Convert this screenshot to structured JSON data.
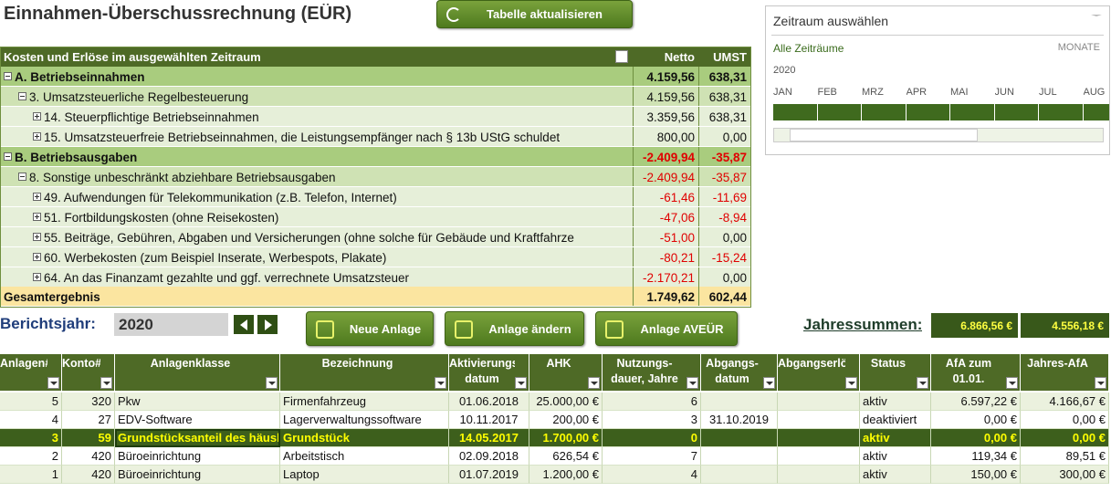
{
  "header": {
    "title": "Einnahmen-Überschussrechnung (EÜR)",
    "refresh_button": "Tabelle aktualisieren"
  },
  "slicer": {
    "title": "Zeitraum auswählen",
    "all_periods": "Alle Zeiträume",
    "level": "MONATE",
    "year": "2020",
    "months": [
      "JAN",
      "FEB",
      "MRZ",
      "APR",
      "MAI",
      "JUN",
      "JUL",
      "AUG"
    ]
  },
  "pivot": {
    "headers": [
      "Kosten und Erlöse im ausgewählten Zeitraum",
      "Netto",
      "UMST"
    ],
    "rows": [
      {
        "label": "A. Betriebseinnahmen",
        "netto": "4.159,56",
        "umst": "638,31"
      },
      {
        "label": "3. Umsatzsteuerliche Regelbesteuerung",
        "netto": "4.159,56",
        "umst": "638,31"
      },
      {
        "label": "14. Steuerpflichtige Betriebseinnahmen",
        "netto": "3.359,56",
        "umst": "638,31"
      },
      {
        "label": "15. Umsatzsteuerfreie Betriebseinnahmen, die Leistungsempfänger nach § 13b UStG schuldet",
        "netto": "800,00",
        "umst": "0,00"
      },
      {
        "label": "B. Betriebsausgaben",
        "netto": "-2.409,94",
        "umst": "-35,87"
      },
      {
        "label": "8. Sonstige unbeschränkt abziehbare Betriebsausgaben",
        "netto": "-2.409,94",
        "umst": "-35,87"
      },
      {
        "label": "49. Aufwendungen für Telekommunikation (z.B. Telefon, Internet)",
        "netto": "-61,46",
        "umst": "-11,69"
      },
      {
        "label": "51. Fortbildungskosten (ohne Reisekosten)",
        "netto": "-47,06",
        "umst": "-8,94"
      },
      {
        "label": "55. Beiträge, Gebühren, Abgaben und Versicherungen (ohne solche für Gebäude und Kraftfahrze",
        "netto": "-51,00",
        "umst": "0,00"
      },
      {
        "label": "60. Werbekosten (zum Beispiel Inserate, Werbespots, Plakate)",
        "netto": "-80,21",
        "umst": "-15,24"
      },
      {
        "label": "64. An das Finanzamt gezahlte und ggf. verrechnete Umsatzsteuer",
        "netto": "-2.170,21",
        "umst": "0,00"
      }
    ],
    "total": {
      "label": "Gesamtergebnis",
      "netto": "1.749,62",
      "umst": "602,44"
    }
  },
  "controls": {
    "report_year_label": "Berichtsjahr:",
    "report_year": "2020",
    "buttons": [
      "Neue Anlage",
      "Anlage ändern",
      "Anlage AVEÜR"
    ],
    "annual_sums_label": "Jahressummen:",
    "annual_sums": [
      "6.866,56 €",
      "4.556,18 €"
    ]
  },
  "assets": {
    "columns": [
      [
        "Anlagen#"
      ],
      [
        "Konto#"
      ],
      [
        "Anlagenklasse"
      ],
      [
        "Bezeichnung"
      ],
      [
        "Aktivierungs-",
        "datum"
      ],
      [
        "AHK"
      ],
      [
        "Nutzungs-",
        "dauer, Jahre"
      ],
      [
        "Abgangs-",
        "datum"
      ],
      [
        "Abgangserlös"
      ],
      [
        "Status"
      ],
      [
        "AfA zum",
        "01.01."
      ],
      [
        "Jahres-AfA"
      ]
    ],
    "rows": [
      [
        "5",
        "320",
        "Pkw",
        "Firmenfahrzeug",
        "01.06.2018",
        "25.000,00 €",
        "6",
        null,
        null,
        "aktiv",
        "6.597,22 €",
        "4.166,67 €"
      ],
      [
        "4",
        "27",
        "EDV-Software",
        "Lagerverwaltungssoftware",
        "10.11.2017",
        "200,00 €",
        "3",
        "31.10.2019",
        null,
        "deaktiviert",
        "0,00 €",
        "0,00 €"
      ],
      [
        "3",
        "59",
        "Grundstücksanteil des häusl",
        "Grundstück",
        "14.05.2017",
        "1.700,00 €",
        "0",
        null,
        null,
        "aktiv",
        "0,00 €",
        "0,00 €"
      ],
      [
        "2",
        "420",
        "Büroeinrichtung",
        "Arbeitstisch",
        "02.09.2018",
        "626,54 €",
        "7",
        null,
        null,
        "aktiv",
        "119,34 €",
        "89,51 €"
      ],
      [
        "1",
        "420",
        "Büroeinrichtung",
        "Laptop",
        "01.07.2019",
        "1.200,00 €",
        "4",
        null,
        null,
        "aktiv",
        "150,00 €",
        "300,00 €"
      ]
    ]
  }
}
